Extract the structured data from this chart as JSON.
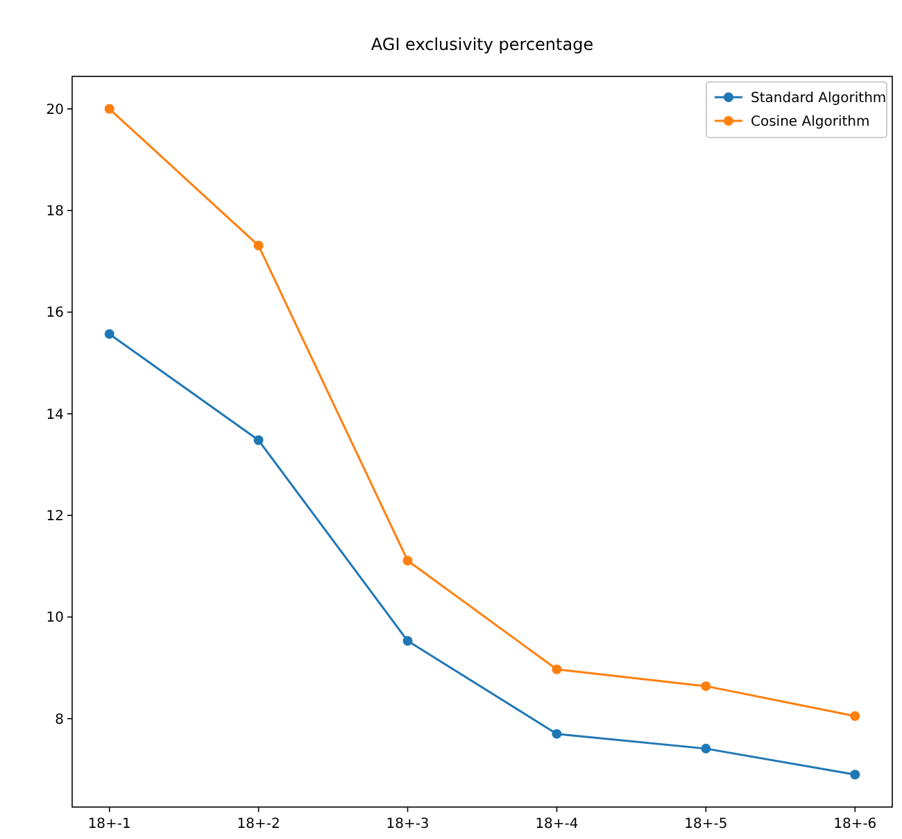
{
  "chart_data": {
    "type": "line",
    "title": "AGI exclusivity percentage",
    "categories": [
      "18+-1",
      "18+-2",
      "18+-3",
      "18+-4",
      "18+-5",
      "18+-6"
    ],
    "series": [
      {
        "name": "Standard Algorithm",
        "color": "#1f77b4",
        "values": [
          15.57,
          13.48,
          9.53,
          7.7,
          7.41,
          6.9
        ]
      },
      {
        "name": "Cosine Algorithm",
        "color": "#ff7f0e",
        "values": [
          20.0,
          17.31,
          11.11,
          8.97,
          8.64,
          8.05
        ]
      }
    ],
    "ylim": [
      6.26,
      20.64
    ],
    "yticks": [
      8,
      10,
      12,
      14,
      16,
      18,
      20
    ],
    "grid": false,
    "legend": "top right",
    "marker": "circle",
    "line_style": "solid"
  }
}
